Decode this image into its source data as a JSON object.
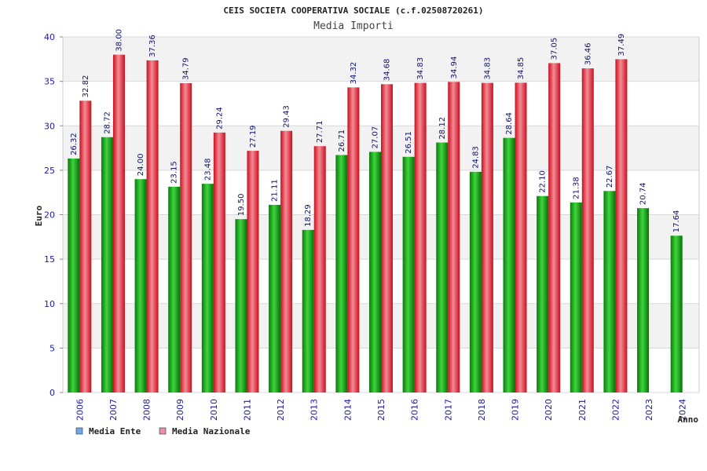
{
  "chart_data": {
    "type": "bar",
    "title": "CEIS SOCIETA COOPERATIVA SOCIALE (c.f.02508720261)",
    "subtitle": "Media Importi",
    "xlabel": "Anno",
    "ylabel": "Euro",
    "ylim": [
      0,
      40
    ],
    "yticks": [
      0,
      5,
      10,
      15,
      20,
      25,
      30,
      35,
      40
    ],
    "categories": [
      "2006",
      "2007",
      "2008",
      "2009",
      "2010",
      "2011",
      "2012",
      "2013",
      "2014",
      "2015",
      "2016",
      "2017",
      "2018",
      "2019",
      "2020",
      "2021",
      "2022",
      "2023",
      "2024"
    ],
    "series": [
      {
        "name": "Media Ente",
        "color": "#0a9a0a",
        "values": [
          26.32,
          28.72,
          24.0,
          23.15,
          23.48,
          19.5,
          21.11,
          18.29,
          26.71,
          27.07,
          26.51,
          28.12,
          24.83,
          28.64,
          22.1,
          21.38,
          22.67,
          20.74,
          17.64
        ],
        "labels": [
          "26.32",
          "28.72",
          "24.00",
          "23.15",
          "23.48",
          "19.50",
          "21.11",
          "18.29",
          "26.71",
          "27.07",
          "26.51",
          "28.12",
          "24.83",
          "28.64",
          "22.10",
          "21.38",
          "22.67",
          "20.74",
          "17.64"
        ]
      },
      {
        "name": "Media Nazionale",
        "color": "#e01a2a",
        "values": [
          32.82,
          38.0,
          37.36,
          34.79,
          29.24,
          27.19,
          29.43,
          27.71,
          34.32,
          34.68,
          34.83,
          34.94,
          34.83,
          34.85,
          37.05,
          36.46,
          37.49,
          null,
          null
        ],
        "labels": [
          "32.82",
          "38.00",
          "37.36",
          "34.79",
          "29.24",
          "27.19",
          "29.43",
          "27.71",
          "34.32",
          "34.68",
          "34.83",
          "34.94",
          "34.83",
          "34.85",
          "37.05",
          "36.46",
          "37.49",
          null,
          null
        ]
      }
    ],
    "legend": [
      {
        "label": "Media Ente",
        "swatch": "#6fa8e8"
      },
      {
        "label": "Media Nazionale",
        "swatch": "#e58fb0"
      }
    ],
    "grid": true,
    "legend_position": "bottom-left"
  }
}
